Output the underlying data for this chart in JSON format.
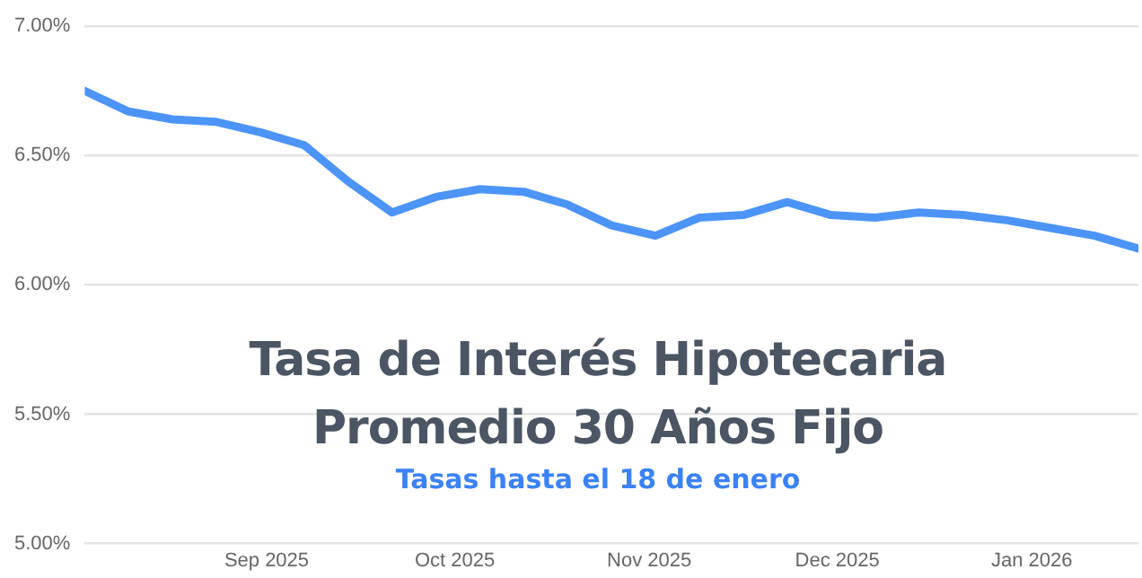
{
  "chart_data": {
    "type": "line",
    "title": "Tasa de Interés Hipotecaria Promedio 30 Años Fijo",
    "subtitle": "Tasas hasta el 18 de enero",
    "x": [
      "2025-08-03",
      "2025-08-10",
      "2025-08-17",
      "2025-08-24",
      "2025-08-31",
      "2025-09-07",
      "2025-09-14",
      "2025-09-21",
      "2025-09-28",
      "2025-10-05",
      "2025-10-12",
      "2025-10-19",
      "2025-10-26",
      "2025-11-02",
      "2025-11-09",
      "2025-11-16",
      "2025-11-23",
      "2025-11-30",
      "2025-12-07",
      "2025-12-14",
      "2025-12-21",
      "2025-12-28",
      "2026-01-04",
      "2026-01-11",
      "2026-01-18"
    ],
    "series": [
      {
        "color": "#4c94f8",
        "values": [
          6.75,
          6.67,
          6.64,
          6.63,
          6.59,
          6.54,
          6.4,
          6.28,
          6.34,
          6.37,
          6.36,
          6.31,
          6.23,
          6.19,
          6.26,
          6.27,
          6.32,
          6.27,
          6.26,
          6.28,
          6.27,
          6.25,
          6.22,
          6.19,
          6.14
        ]
      }
    ],
    "xlim": [
      "2025-08-03",
      "2026-01-18"
    ],
    "xticks": [
      {
        "value": "2025-09-01",
        "label": "Sep 2025"
      },
      {
        "value": "2025-10-01",
        "label": "Oct 2025"
      },
      {
        "value": "2025-11-01",
        "label": "Nov 2025"
      },
      {
        "value": "2025-12-01",
        "label": "Dec 2025"
      },
      {
        "value": "2026-01-01",
        "label": "Jan 2026"
      }
    ],
    "ylim": [
      5,
      7
    ],
    "yticks": [
      {
        "value": 5,
        "label": "5.00%"
      },
      {
        "value": 5.5,
        "label": "5.50%"
      },
      {
        "value": 6,
        "label": "6.00%"
      },
      {
        "value": 6.5,
        "label": "6.50%"
      },
      {
        "value": 7,
        "label": "7.00%"
      }
    ],
    "grid": "y",
    "legend": false,
    "marker": "none",
    "line_style": "solid"
  }
}
